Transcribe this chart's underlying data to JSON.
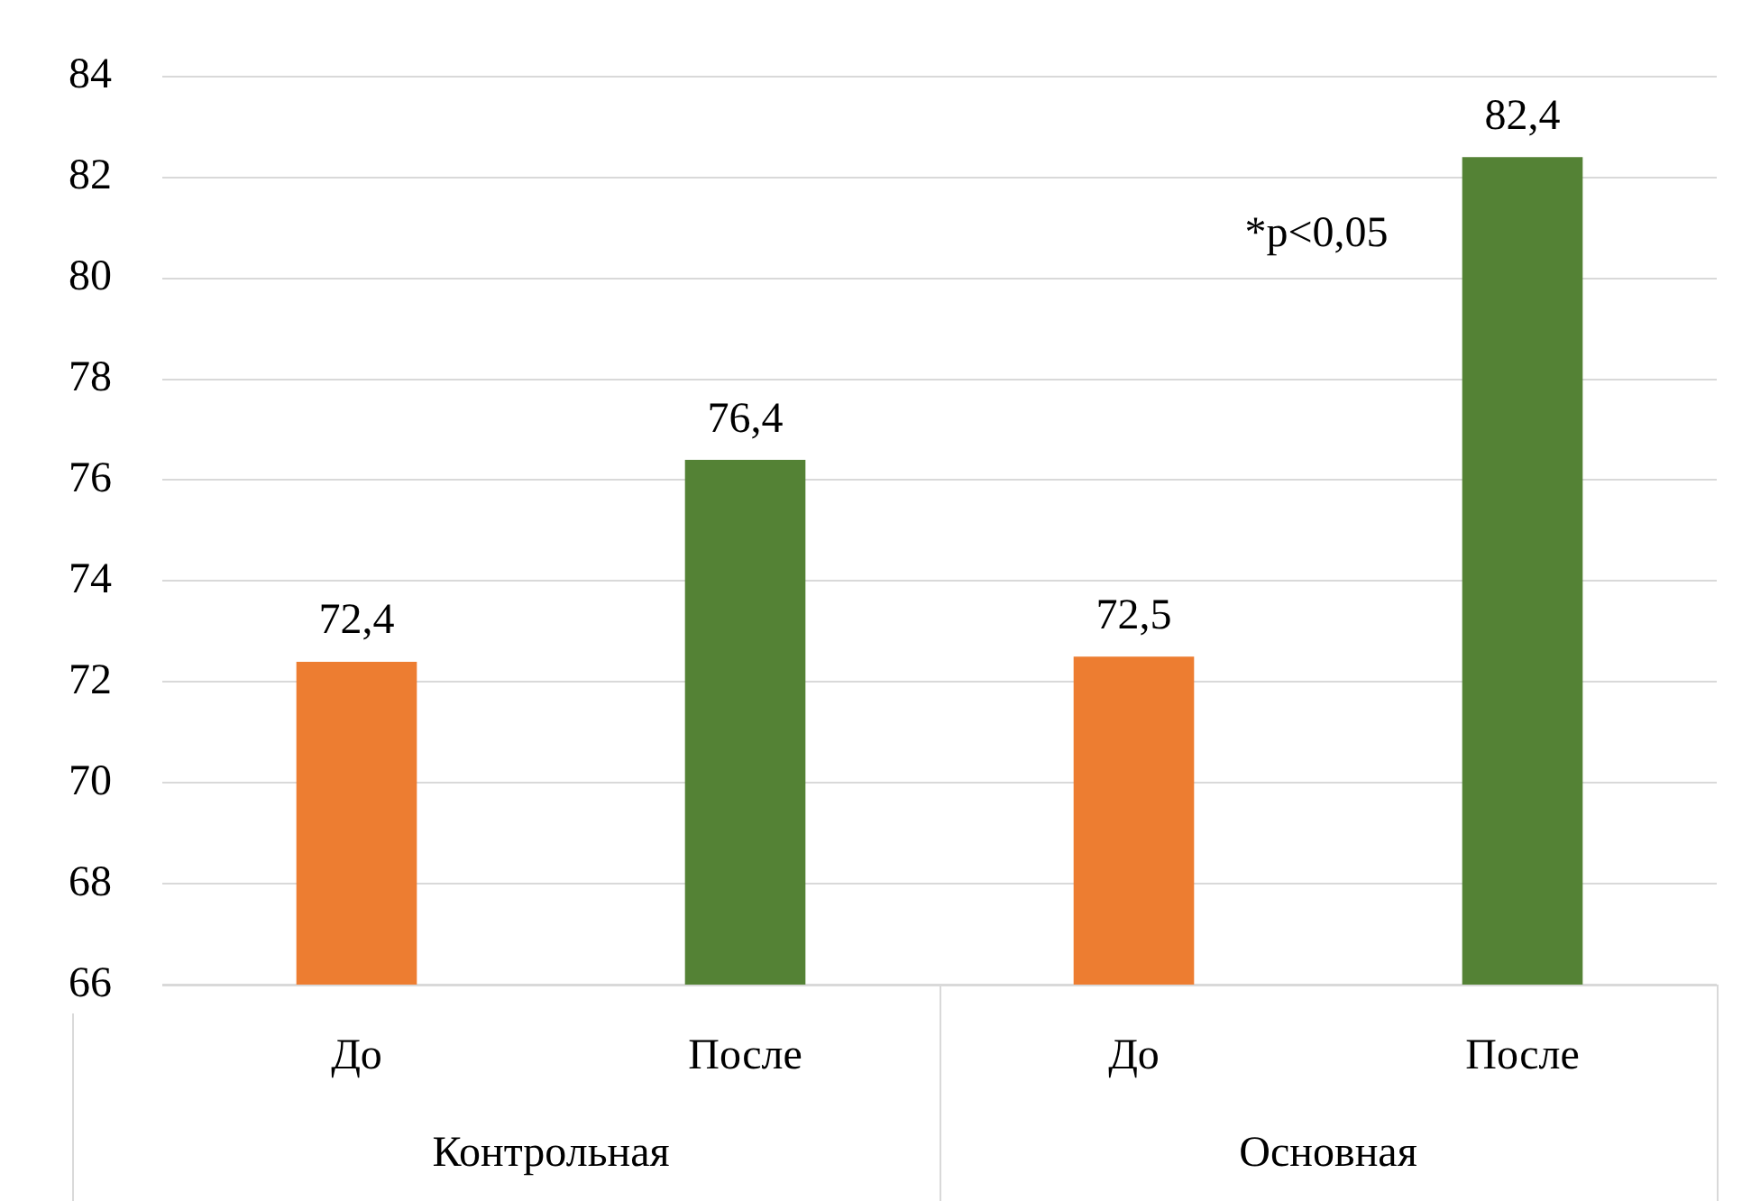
{
  "chart_data": {
    "type": "bar",
    "categories": [
      "Контрольная",
      "Основная"
    ],
    "series": [
      {
        "name": "До",
        "color": "#ed7d31",
        "values": [
          72.4,
          72.5
        ],
        "value_labels": [
          "72,4",
          "72,5"
        ]
      },
      {
        "name": "После",
        "color": "#548235",
        "values": [
          76.4,
          82.4
        ],
        "value_labels": [
          "76,4",
          "82,4"
        ]
      }
    ],
    "ylim": [
      66,
      84
    ],
    "yticks": [
      66,
      68,
      70,
      72,
      74,
      76,
      78,
      80,
      82,
      84
    ],
    "grid": "y",
    "annotations": [
      "*p<0,05"
    ]
  }
}
